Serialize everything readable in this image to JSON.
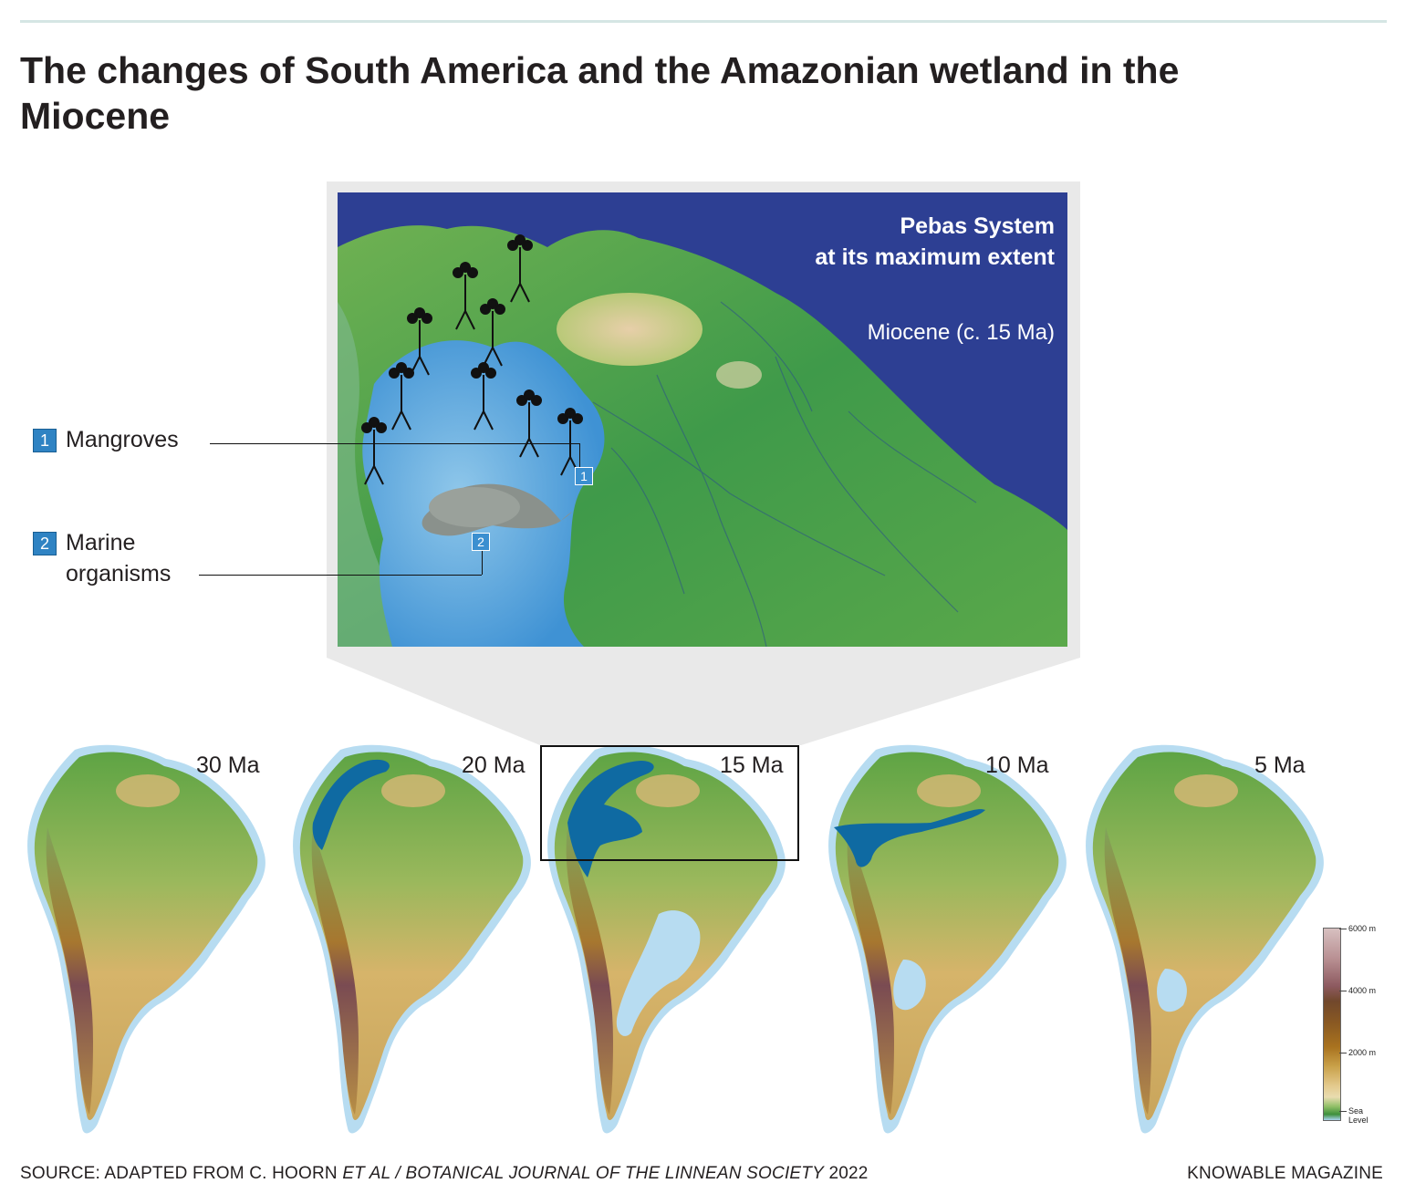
{
  "title": "The changes of South America and the Amazonian wetland in the Miocene",
  "inset": {
    "title_line1": "Pebas System",
    "title_line2": "at its maximum extent",
    "epoch": "Miocene (c. 15 Ma)",
    "tags": [
      "1",
      "2"
    ]
  },
  "legend": [
    {
      "number": "1",
      "label": "Mangroves"
    },
    {
      "number": "2",
      "label_line1": "Marine",
      "label_line2": "organisms"
    }
  ],
  "panels": [
    {
      "label": "30 Ma",
      "wetland": "none"
    },
    {
      "label": "20 Ma",
      "wetland": "western-corridor"
    },
    {
      "label": "15 Ma",
      "wetland": "pebas-maximum",
      "highlighted": true
    },
    {
      "label": "10 Ma",
      "wetland": "transcontinental-river"
    },
    {
      "label": "5 Ma",
      "wetland": "none"
    }
  ],
  "elevation_scale": {
    "labels": [
      "6000 m",
      "4000 m",
      "2000 m",
      "Sea",
      "Level"
    ]
  },
  "colors": {
    "ocean_deep": "#2b3f95",
    "shelf": "#a8d4ef",
    "wetland": "#0f6aa2",
    "lowland": "#4f9a3e",
    "upland": "#d7b46a",
    "highland": "#7a4b52"
  },
  "footer": {
    "source_prefix": "SOURCE: ADAPTED FROM C. HOORN ",
    "source_italic": "ET AL / BOTANICAL JOURNAL OF THE LINNEAN SOCIETY",
    "source_suffix": " 2022",
    "credit": "KNOWABLE MAGAZINE"
  }
}
